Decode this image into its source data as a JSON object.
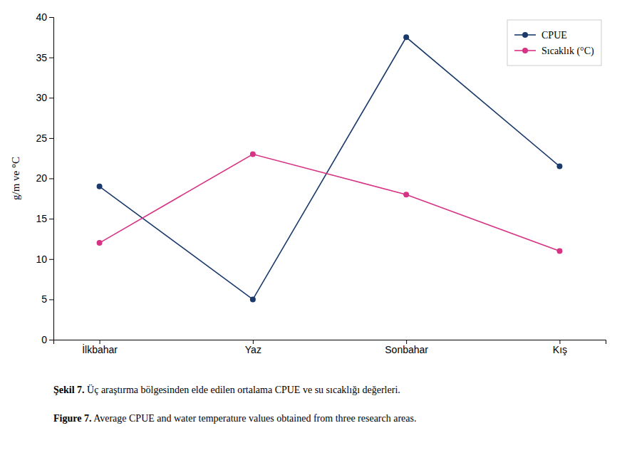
{
  "chart_data": {
    "type": "line",
    "categories": [
      "İlkbahar",
      "Yaz",
      "Sonbahar",
      "Kış"
    ],
    "series": [
      {
        "name": "CPUE",
        "color": "#1a3a6b",
        "values": [
          19.0,
          5.0,
          37.5,
          21.5
        ]
      },
      {
        "name": "Sıcaklık (°C)",
        "color": "#d63384",
        "values": [
          12.0,
          23.0,
          18.0,
          11.0
        ]
      }
    ],
    "y_label": "g/m ve °C",
    "ylim": [
      0,
      40
    ],
    "yticks": [
      0,
      5,
      10,
      15,
      20,
      25,
      30,
      35,
      40
    ],
    "grid": false,
    "legend": "upper right",
    "marker": "circle",
    "captions": [
      {
        "bold": "Şekil 7.",
        "text": " Üç araştırma bölgesinden elde edilen ortalama CPUE ve su sıcaklığı değerleri."
      },
      {
        "bold": "Figure 7.",
        "text": " Average CPUE and water temperature values obtained from three research areas."
      }
    ]
  }
}
